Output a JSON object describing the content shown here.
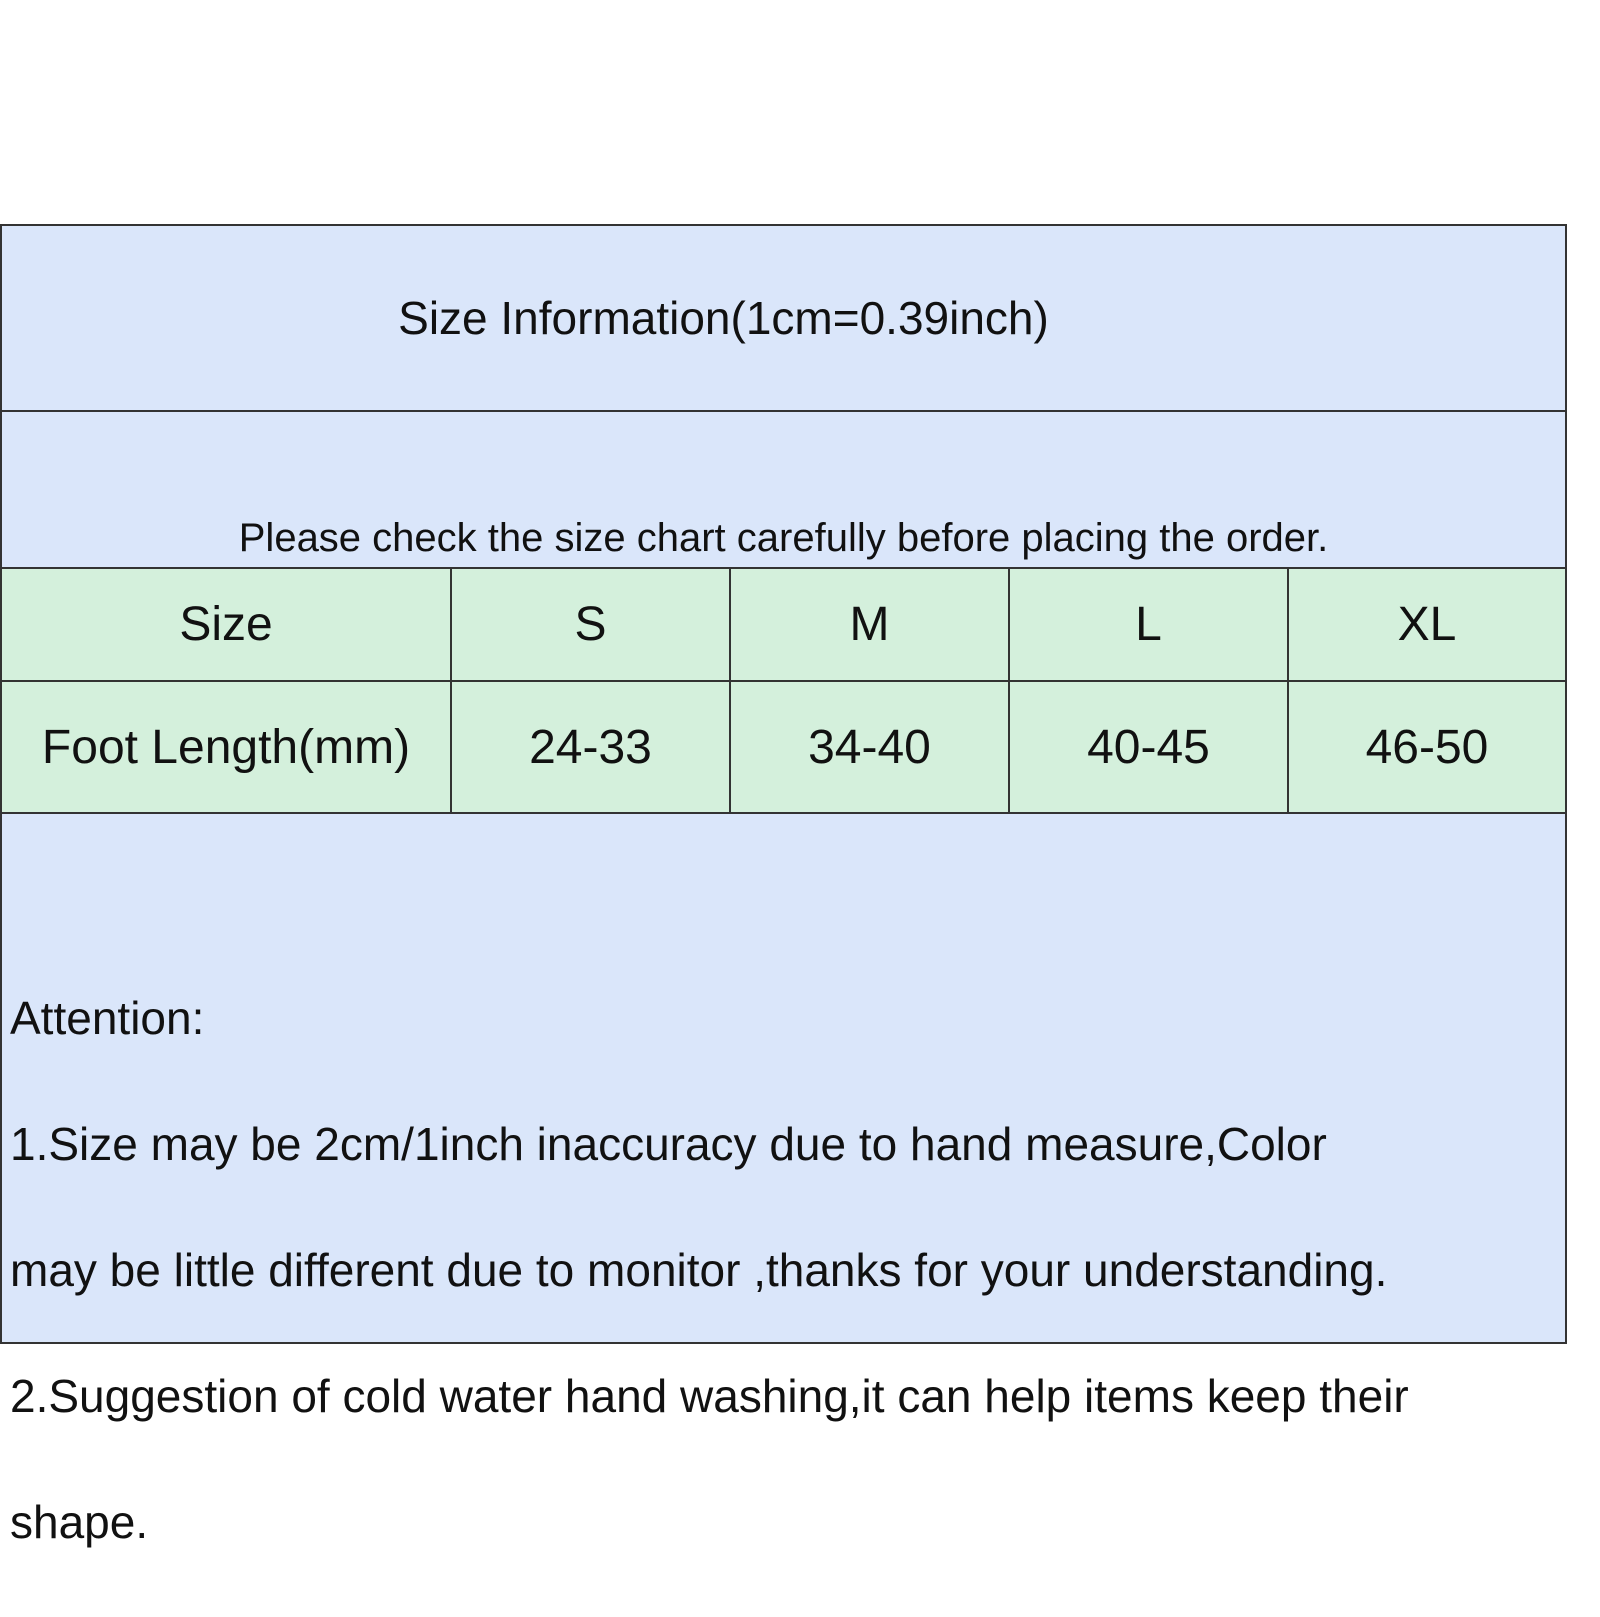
{
  "title": "Size Information(1cm=0.39inch)",
  "note": "Please check the size chart carefully before placing the order.",
  "table": {
    "headers": [
      "Size",
      "S",
      "M",
      "L",
      "XL"
    ],
    "rows": [
      [
        "Foot Length(mm)",
        "24-33",
        "34-40",
        "40-45",
        "46-50"
      ]
    ]
  },
  "attention": {
    "heading": "Attention:",
    "lines": [
      "1.Size may be 2cm/1inch inaccuracy due to hand measure,Color",
      "may be little different due to monitor ,thanks for your understanding.",
      "2.Suggestion of cold water hand washing,it can help items keep their",
      "shape."
    ]
  },
  "colors": {
    "header_bg": "#dae6fa",
    "table_bg": "#d4f0dc",
    "border": "#333333"
  }
}
